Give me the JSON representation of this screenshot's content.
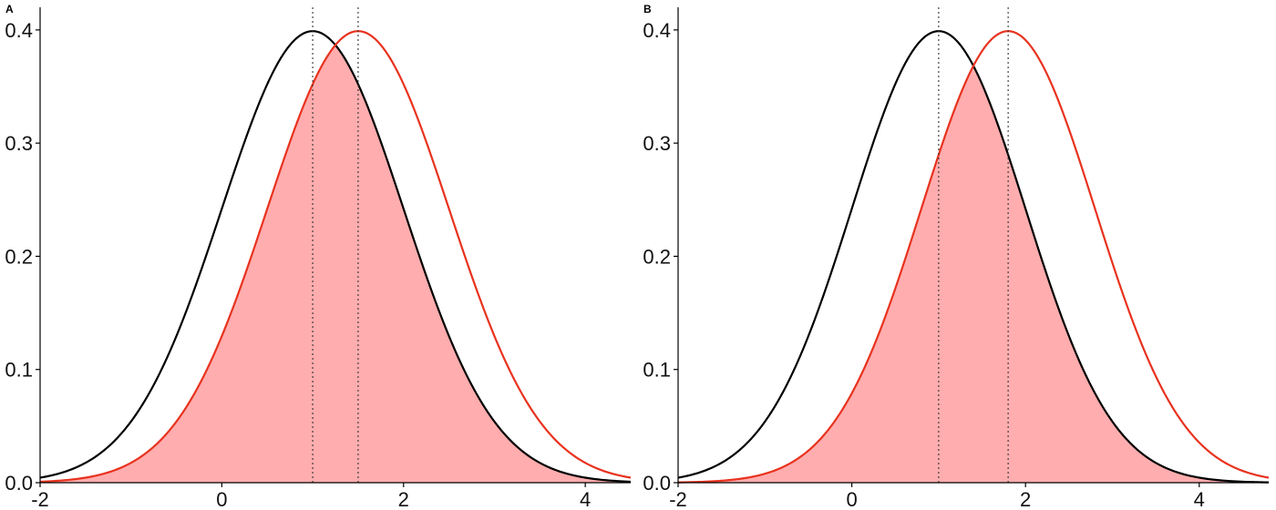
{
  "chart_data": [
    {
      "type": "area",
      "panel_label": "A",
      "title": "",
      "xlabel": "",
      "ylabel": "",
      "xlim": [
        -2.0,
        4.5
      ],
      "ylim": [
        0,
        0.42
      ],
      "x_ticks": [
        -2,
        0,
        2,
        4
      ],
      "x_tick_labels": [
        "-2",
        "0",
        "2",
        "4"
      ],
      "y_ticks": [
        0.0,
        0.1,
        0.2,
        0.3,
        0.4
      ],
      "y_tick_labels": [
        "0.0",
        "0.1",
        "0.2",
        "0.3",
        "0.4"
      ],
      "grid": false,
      "legend": "none",
      "series": [
        {
          "distribution": "normal",
          "mean": 1.0,
          "sd": 1.0,
          "color": "#000000"
        },
        {
          "distribution": "normal",
          "mean": 1.5,
          "sd": 1.0,
          "color": "#e8321e",
          "fill": "#ffadae"
        }
      ],
      "vlines": [
        1.0,
        1.5
      ]
    },
    {
      "type": "area",
      "panel_label": "B",
      "title": "",
      "xlabel": "",
      "ylabel": "",
      "xlim": [
        -2.0,
        4.8
      ],
      "ylim": [
        0,
        0.42
      ],
      "x_ticks": [
        -2,
        0,
        2,
        4
      ],
      "x_tick_labels": [
        "-2",
        "0",
        "2",
        "4"
      ],
      "y_ticks": [
        0.0,
        0.1,
        0.2,
        0.3,
        0.4
      ],
      "y_tick_labels": [
        "0.0",
        "0.1",
        "0.2",
        "0.3",
        "0.4"
      ],
      "grid": false,
      "legend": "none",
      "series": [
        {
          "distribution": "normal",
          "mean": 1.0,
          "sd": 1.0,
          "color": "#000000"
        },
        {
          "distribution": "normal",
          "mean": 1.8,
          "sd": 1.0,
          "color": "#e8321e",
          "fill": "#ffadae"
        }
      ],
      "vlines": [
        1.0,
        1.8
      ]
    }
  ]
}
